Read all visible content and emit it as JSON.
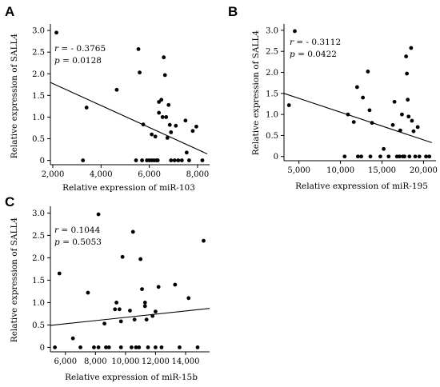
{
  "chart_data": [
    {
      "panel": "A",
      "type": "scatter",
      "xlabel": "Relative expression of miR-103",
      "ylabel": "Relative expression of  SALL4",
      "xlim": [
        1900,
        8500
      ],
      "ylim": [
        -0.1,
        3.15
      ],
      "xticks": [
        2000,
        4000,
        6000,
        8000
      ],
      "xtick_labels": [
        "2,000",
        "4,000",
        "6,000",
        "8,000"
      ],
      "yticks": [
        0,
        0.5,
        1.0,
        1.5,
        2.0,
        2.5,
        3.0
      ],
      "ytick_labels": [
        "0",
        "0.5",
        "1.0",
        "1.5",
        "2.0",
        "2.5",
        "3.0"
      ],
      "stats": {
        "r_symbol": "r",
        "r_value": "= - 0.3765",
        "p_symbol": "p",
        "p_value": "= 0.0128"
      },
      "trendline": {
        "x": [
          1900,
          8400
        ],
        "y": [
          1.8,
          0.15
        ]
      },
      "points": [
        {
          "x": 2150,
          "y": 2.95
        },
        {
          "x": 3400,
          "y": 1.22
        },
        {
          "x": 3250,
          "y": 0.0
        },
        {
          "x": 4650,
          "y": 1.63
        },
        {
          "x": 5550,
          "y": 2.57
        },
        {
          "x": 5600,
          "y": 2.03
        },
        {
          "x": 5750,
          "y": 0.83
        },
        {
          "x": 5450,
          "y": 0.0
        },
        {
          "x": 5700,
          "y": 0.0
        },
        {
          "x": 5900,
          "y": 0.0
        },
        {
          "x": 6000,
          "y": 0.0
        },
        {
          "x": 6100,
          "y": 0.0
        },
        {
          "x": 6200,
          "y": 0.0
        },
        {
          "x": 6300,
          "y": 0.0
        },
        {
          "x": 6350,
          "y": 0.0
        },
        {
          "x": 6100,
          "y": 0.6
        },
        {
          "x": 6250,
          "y": 0.55
        },
        {
          "x": 6400,
          "y": 1.35
        },
        {
          "x": 6500,
          "y": 1.4
        },
        {
          "x": 6400,
          "y": 1.1
        },
        {
          "x": 6550,
          "y": 1.0
        },
        {
          "x": 6600,
          "y": 2.38
        },
        {
          "x": 6650,
          "y": 1.97
        },
        {
          "x": 6700,
          "y": 1.0
        },
        {
          "x": 6800,
          "y": 1.28
        },
        {
          "x": 6850,
          "y": 0.82
        },
        {
          "x": 6750,
          "y": 0.52
        },
        {
          "x": 6900,
          "y": 0.65
        },
        {
          "x": 6900,
          "y": 0.0
        },
        {
          "x": 7050,
          "y": 0.0
        },
        {
          "x": 7100,
          "y": 0.8
        },
        {
          "x": 7200,
          "y": 0.0
        },
        {
          "x": 7350,
          "y": 0.0
        },
        {
          "x": 7500,
          "y": 0.92
        },
        {
          "x": 7550,
          "y": 0.18
        },
        {
          "x": 7650,
          "y": 0.0
        },
        {
          "x": 7800,
          "y": 0.68
        },
        {
          "x": 7950,
          "y": 0.78
        },
        {
          "x": 8200,
          "y": 0.0
        }
      ]
    },
    {
      "panel": "B",
      "type": "scatter",
      "xlabel": "Relative expression of miR-195",
      "ylabel": "Relative expression of  SALL4",
      "xlim": [
        3200,
        21500
      ],
      "ylim": [
        -0.1,
        3.15
      ],
      "xticks": [
        5000,
        10000,
        15000,
        20000
      ],
      "xtick_labels": [
        "5,000",
        "10,000",
        "15,000",
        "20,000"
      ],
      "yticks": [
        0,
        0.5,
        1.0,
        1.5,
        2.0,
        2.5,
        3.0
      ],
      "ytick_labels": [
        "0",
        "0.5",
        "1.0",
        "1.5",
        "2.0",
        "2.5",
        "3.0"
      ],
      "stats": {
        "r_symbol": "r",
        "r_value": "= - 0.3112",
        "p_symbol": "p",
        "p_value": "= 0.0422"
      },
      "trendline": {
        "x": [
          3200,
          21000
        ],
        "y": [
          1.5,
          0.33
        ]
      },
      "points": [
        {
          "x": 4500,
          "y": 2.98
        },
        {
          "x": 3800,
          "y": 1.22
        },
        {
          "x": 10500,
          "y": 0.0
        },
        {
          "x": 10900,
          "y": 1.0
        },
        {
          "x": 11600,
          "y": 0.82
        },
        {
          "x": 12000,
          "y": 1.65
        },
        {
          "x": 12100,
          "y": 0.0
        },
        {
          "x": 12500,
          "y": 0.0
        },
        {
          "x": 12700,
          "y": 1.4
        },
        {
          "x": 13300,
          "y": 2.02
        },
        {
          "x": 13500,
          "y": 1.1
        },
        {
          "x": 13800,
          "y": 0.8
        },
        {
          "x": 13600,
          "y": 0.0
        },
        {
          "x": 14800,
          "y": 0.0
        },
        {
          "x": 15200,
          "y": 0.18
        },
        {
          "x": 15800,
          "y": 0.0
        },
        {
          "x": 16300,
          "y": 0.75
        },
        {
          "x": 16500,
          "y": 1.3
        },
        {
          "x": 16800,
          "y": 0.0
        },
        {
          "x": 17100,
          "y": 0.0
        },
        {
          "x": 17200,
          "y": 0.62
        },
        {
          "x": 17400,
          "y": 1.0
        },
        {
          "x": 17500,
          "y": 0.0
        },
        {
          "x": 17700,
          "y": 0.0
        },
        {
          "x": 17900,
          "y": 2.38
        },
        {
          "x": 18000,
          "y": 1.97
        },
        {
          "x": 18100,
          "y": 1.35
        },
        {
          "x": 18200,
          "y": 0.95
        },
        {
          "x": 18300,
          "y": 0.0
        },
        {
          "x": 18500,
          "y": 2.58
        },
        {
          "x": 18600,
          "y": 0.85
        },
        {
          "x": 18800,
          "y": 0.6
        },
        {
          "x": 19000,
          "y": 0.0
        },
        {
          "x": 19300,
          "y": 0.7
        },
        {
          "x": 19500,
          "y": 0.0
        },
        {
          "x": 20300,
          "y": 0.0
        },
        {
          "x": 20700,
          "y": 0.0
        }
      ]
    },
    {
      "panel": "C",
      "type": "scatter",
      "xlabel": "Relative expression of miR-15b",
      "ylabel": "Relative expression of  SALL4",
      "xlim": [
        5000,
        15600
      ],
      "ylim": [
        -0.1,
        3.15
      ],
      "xticks": [
        6000,
        8000,
        10000,
        12000,
        14000
      ],
      "xtick_labels": [
        "6,000",
        "8,000",
        "10,000",
        "12,000",
        "14,000"
      ],
      "yticks": [
        0,
        0.5,
        1.0,
        1.5,
        2.0,
        2.5,
        3.0
      ],
      "ytick_labels": [
        "0",
        "0.5",
        "1.0",
        "1.5",
        "2.0",
        "2.5",
        "3.0"
      ],
      "stats": {
        "r_symbol": "r",
        "r_value": "= 0.1044",
        "p_symbol": "p",
        "p_value": "= 0.5053"
      },
      "trendline": {
        "x": [
          5000,
          15600
        ],
        "y": [
          0.49,
          0.87
        ]
      },
      "points": [
        {
          "x": 5300,
          "y": 0.0
        },
        {
          "x": 5600,
          "y": 1.65
        },
        {
          "x": 6500,
          "y": 0.2
        },
        {
          "x": 7000,
          "y": 0.0
        },
        {
          "x": 7500,
          "y": 1.22
        },
        {
          "x": 7900,
          "y": 0.0
        },
        {
          "x": 8200,
          "y": 2.97
        },
        {
          "x": 8200,
          "y": 0.0
        },
        {
          "x": 8600,
          "y": 0.53
        },
        {
          "x": 8700,
          "y": 0.0
        },
        {
          "x": 8900,
          "y": 0.0
        },
        {
          "x": 9300,
          "y": 0.85
        },
        {
          "x": 9400,
          "y": 1.0
        },
        {
          "x": 9600,
          "y": 0.85
        },
        {
          "x": 9700,
          "y": 0.0
        },
        {
          "x": 9800,
          "y": 2.02
        },
        {
          "x": 9700,
          "y": 0.58
        },
        {
          "x": 10300,
          "y": 0.82
        },
        {
          "x": 10500,
          "y": 2.58
        },
        {
          "x": 10400,
          "y": 0.0
        },
        {
          "x": 10600,
          "y": 0.62
        },
        {
          "x": 10700,
          "y": 0.0
        },
        {
          "x": 10900,
          "y": 0.0
        },
        {
          "x": 11000,
          "y": 1.97
        },
        {
          "x": 11100,
          "y": 1.3
        },
        {
          "x": 11300,
          "y": 1.0
        },
        {
          "x": 11300,
          "y": 0.92
        },
        {
          "x": 11400,
          "y": 0.62
        },
        {
          "x": 11500,
          "y": 0.0
        },
        {
          "x": 11800,
          "y": 0.7
        },
        {
          "x": 12000,
          "y": 0.8
        },
        {
          "x": 12200,
          "y": 1.35
        },
        {
          "x": 12000,
          "y": 0.0
        },
        {
          "x": 12400,
          "y": 0.0
        },
        {
          "x": 13300,
          "y": 1.4
        },
        {
          "x": 13600,
          "y": 0.0
        },
        {
          "x": 14200,
          "y": 1.1
        },
        {
          "x": 14800,
          "y": 0.0
        },
        {
          "x": 15200,
          "y": 2.38
        }
      ]
    }
  ]
}
